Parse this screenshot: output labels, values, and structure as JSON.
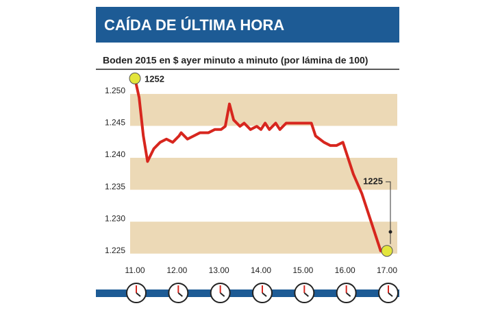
{
  "chart_data": {
    "type": "line",
    "title": "CAÍDA DE ÚLTIMA HORA",
    "subtitle": "Boden 2015 en $ ayer minuto a minuto (por lámina de 100)",
    "annotations": [
      "1252",
      "1225"
    ],
    "x": [
      11.0,
      11.1,
      11.2,
      11.3,
      11.45,
      11.6,
      11.75,
      11.9,
      12.05,
      12.1,
      12.25,
      12.4,
      12.55,
      12.75,
      12.9,
      13.05,
      13.15,
      13.25,
      13.35,
      13.5,
      13.6,
      13.75,
      13.9,
      14.0,
      14.1,
      14.2,
      14.35,
      14.45,
      14.6,
      14.75,
      15.0,
      15.2,
      15.3,
      15.5,
      15.65,
      15.8,
      15.95,
      16.05,
      16.2,
      16.4,
      16.6,
      16.75,
      16.85,
      17.0
    ],
    "series": [
      {
        "name": "Boden 2015",
        "color": "#d7261e",
        "values": [
          1252,
          1249,
          1243,
          1239,
          1241,
          1242,
          1242.5,
          1242,
          1243,
          1243.5,
          1242.5,
          1243,
          1243.5,
          1243.5,
          1244,
          1244,
          1244.5,
          1248,
          1245.5,
          1244.5,
          1245,
          1244,
          1244.5,
          1244,
          1245,
          1244,
          1245,
          1244,
          1245,
          1245,
          1245,
          1245,
          1243,
          1242,
          1241.5,
          1241.5,
          1242,
          1240,
          1237,
          1234,
          1230,
          1227,
          1225,
          1225
        ]
      }
    ],
    "xlim": [
      11,
      17
    ],
    "xticks": [
      {
        "value": 11,
        "label": "11.00"
      },
      {
        "value": 12,
        "label": "12.00"
      },
      {
        "value": 13,
        "label": "13.00"
      },
      {
        "value": 14,
        "label": "14.00"
      },
      {
        "value": 15,
        "label": "15.00"
      },
      {
        "value": 16,
        "label": "16.00"
      },
      {
        "value": 17,
        "label": "17.00"
      }
    ],
    "ylim": [
      1224,
      1253
    ],
    "yticks": [
      {
        "value": 1225,
        "label": "1.225"
      },
      {
        "value": 1230,
        "label": "1.230"
      },
      {
        "value": 1235,
        "label": "1.235"
      },
      {
        "value": 1240,
        "label": "1.240"
      },
      {
        "value": 1245,
        "label": "1.245"
      },
      {
        "value": 1250,
        "label": "1.250"
      }
    ],
    "band_color": "#ecd9b6"
  }
}
